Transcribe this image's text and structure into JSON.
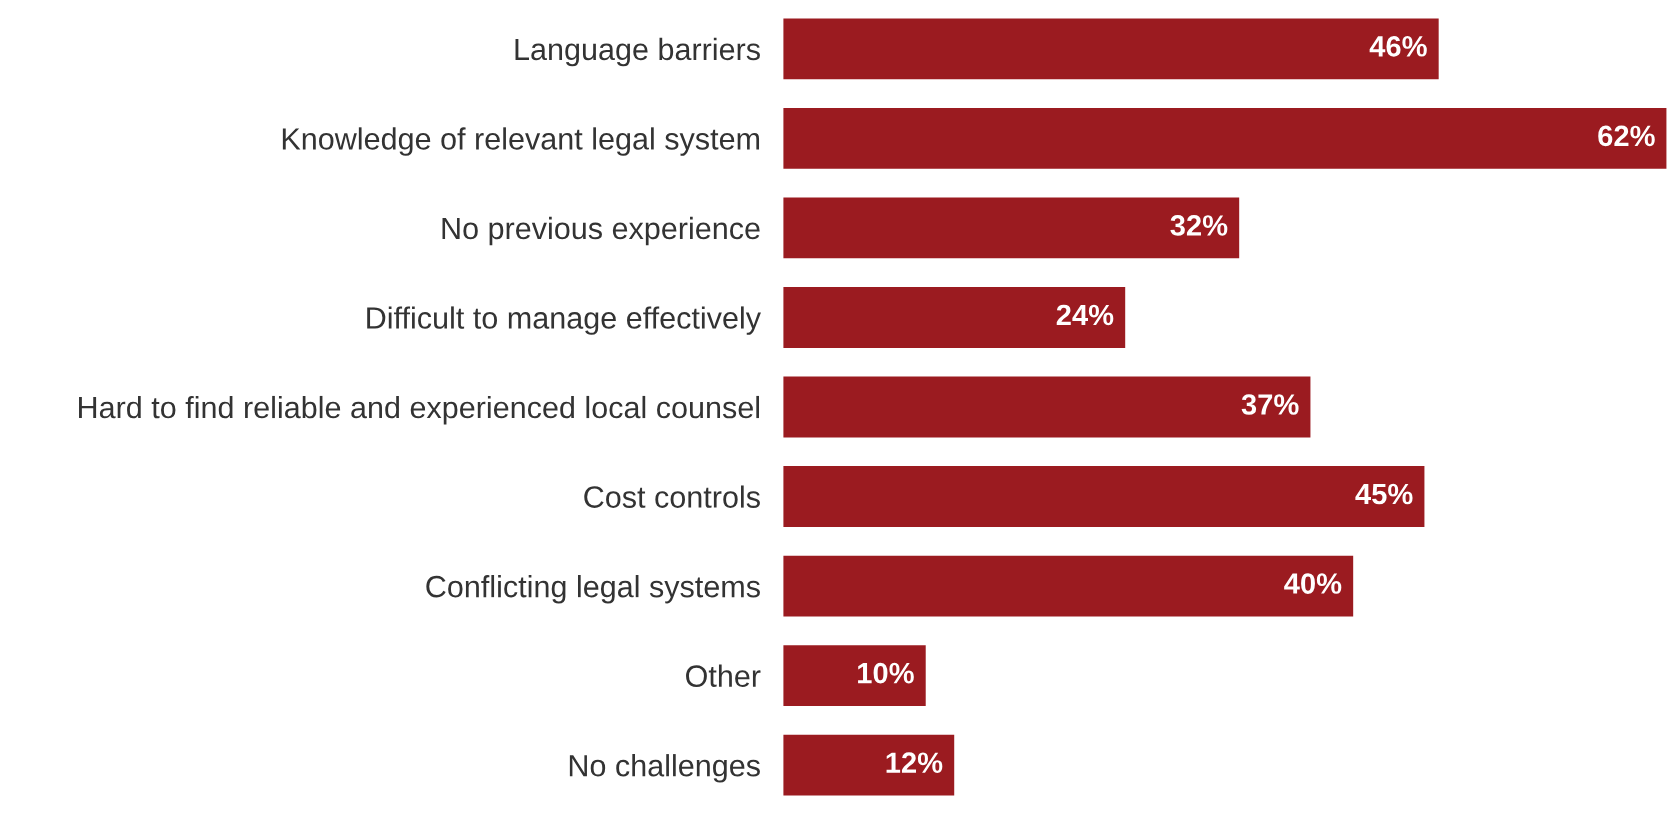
{
  "chart_data": {
    "type": "bar",
    "orientation": "horizontal",
    "categories": [
      "Language barriers",
      "Knowledge of relevant legal system",
      "No previous experience",
      "Difficult to manage effectively",
      "Hard to find reliable and experienced local counsel",
      "Cost controls",
      "Conflicting legal systems",
      "Other",
      "No challenges"
    ],
    "values": [
      46,
      62,
      32,
      24,
      37,
      45,
      40,
      10,
      12
    ],
    "value_labels": [
      "46%",
      "62%",
      "32%",
      "24%",
      "37%",
      "45%",
      "40%",
      "10%",
      "12%"
    ],
    "color": "#9b1b20",
    "grid": false,
    "legend": false
  }
}
